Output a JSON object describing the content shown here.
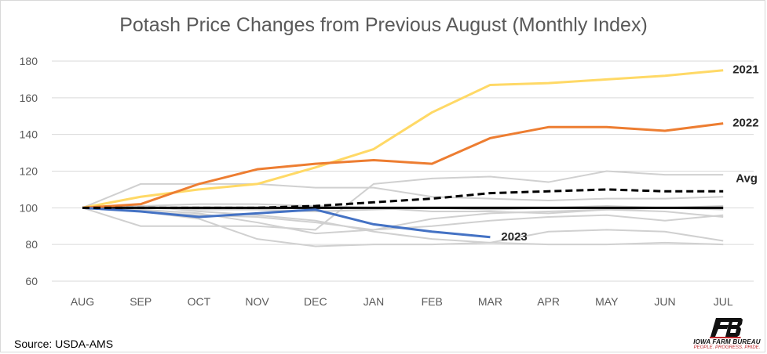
{
  "chart_data": {
    "type": "line",
    "title": "Potash Price Changes from Previous August (Monthly Index)",
    "categories": [
      "AUG",
      "SEP",
      "OCT",
      "NOV",
      "DEC",
      "JAN",
      "FEB",
      "MAR",
      "APR",
      "MAY",
      "JUN",
      "JUL"
    ],
    "ylim": [
      60,
      180
    ],
    "yticks": [
      60,
      80,
      100,
      120,
      140,
      160,
      180
    ],
    "grid": true,
    "legend": "none",
    "highlighted_series": [
      {
        "name": "2021",
        "color": "#ffd966",
        "values": [
          100,
          106,
          110,
          113,
          122,
          132,
          152,
          167,
          168,
          170,
          172,
          175
        ]
      },
      {
        "name": "2022",
        "color": "#ed7d31",
        "values": [
          100,
          102,
          113,
          121,
          124,
          126,
          124,
          138,
          144,
          144,
          142,
          146
        ]
      },
      {
        "name": "2023",
        "color": "#4472c4",
        "values": [
          100,
          98,
          95,
          97,
          99,
          91,
          87,
          84
        ]
      },
      {
        "name": "Avg",
        "color": "#000000",
        "dashed": true,
        "values": [
          100,
          100,
          100,
          100,
          101,
          103,
          105,
          108,
          109,
          110,
          109,
          109
        ]
      }
    ],
    "background_series": [
      {
        "values": [
          100,
          113,
          113,
          113,
          111,
          111,
          106,
          105,
          104,
          105,
          105,
          106
        ]
      },
      {
        "values": [
          100,
          90,
          90,
          90,
          88,
          113,
          116,
          117,
          114,
          120,
          118,
          118
        ]
      },
      {
        "values": [
          100,
          98,
          94,
          83,
          79,
          80,
          80,
          81,
          80,
          80,
          81,
          80
        ]
      },
      {
        "values": [
          100,
          101,
          98,
          96,
          93,
          87,
          83,
          81,
          87,
          88,
          87,
          82
        ]
      },
      {
        "values": [
          100,
          99,
          97,
          92,
          86,
          88,
          94,
          97,
          98,
          99,
          98,
          95
        ]
      },
      {
        "values": [
          100,
          100,
          99,
          99,
          98,
          99,
          100,
          99,
          100,
          101,
          100,
          99
        ]
      },
      {
        "values": [
          100,
          101,
          102,
          102,
          101,
          100,
          98,
          98,
          97,
          99,
          100,
          101
        ]
      },
      {
        "values": [
          100,
          98,
          96,
          95,
          92,
          88,
          90,
          93,
          95,
          96,
          93,
          96
        ]
      }
    ],
    "baseline": {
      "value": 100,
      "color": "#000000"
    }
  },
  "footer": {
    "source": "Source: USDA-AMS",
    "logo_mark": "FB",
    "logo_name": "IOWA FARM BUREAU",
    "logo_tagline": "PEOPLE. PROGRESS. PRIDE."
  }
}
